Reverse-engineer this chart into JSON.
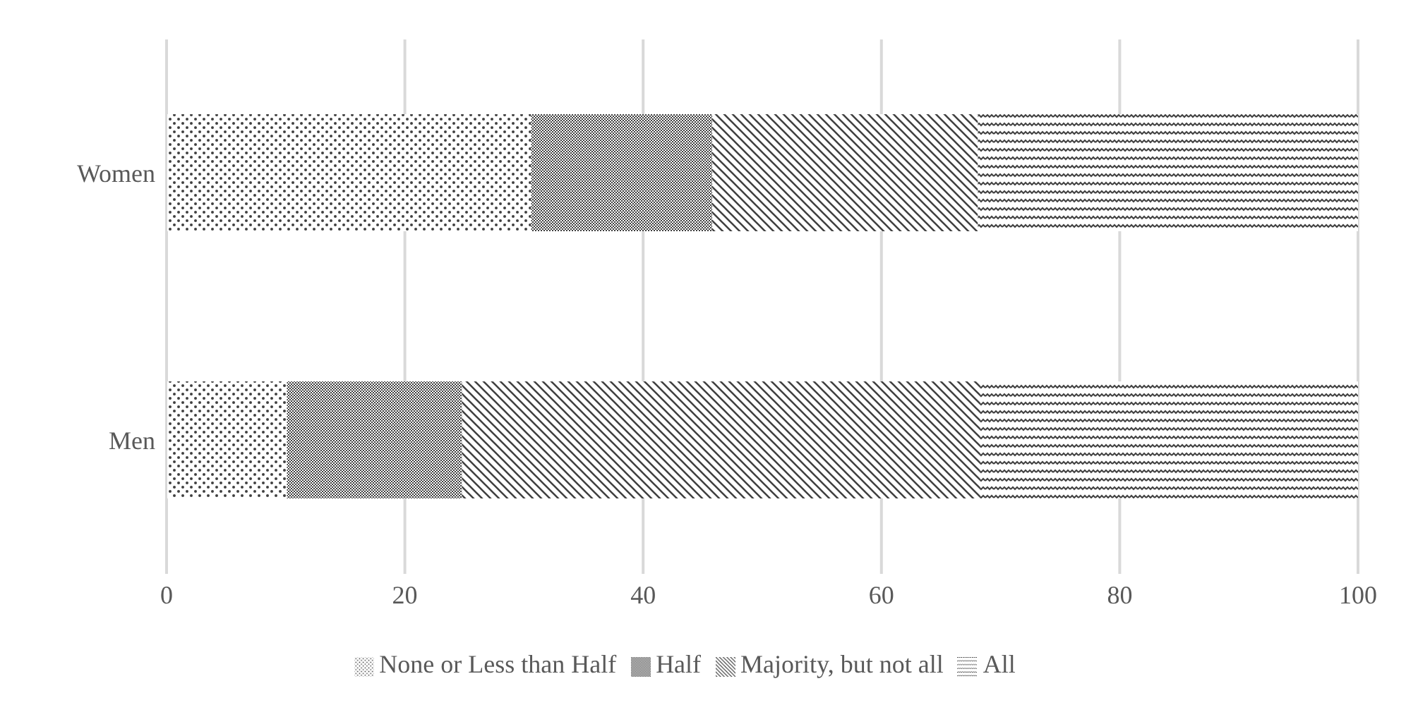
{
  "chart_data": {
    "type": "bar",
    "orientation": "horizontal",
    "stacked": true,
    "categories": [
      "Women",
      "Men"
    ],
    "series": [
      {
        "name": "None or Less than Half",
        "color": "#404040",
        "values": [
          30.6,
          10.1
        ]
      },
      {
        "name": "Half",
        "color": "#404040",
        "values": [
          15.2,
          14.7
        ]
      },
      {
        "name": "Majority, but not all",
        "color": "#404040",
        "values": [
          22.3,
          43.5
        ]
      },
      {
        "name": "All",
        "color": "#404040",
        "values": [
          31.9,
          31.7
        ]
      }
    ],
    "xlim": [
      0,
      100
    ],
    "xticks": [
      0,
      20,
      40,
      60,
      80,
      100
    ],
    "grid": "x",
    "legend": "bottom"
  }
}
